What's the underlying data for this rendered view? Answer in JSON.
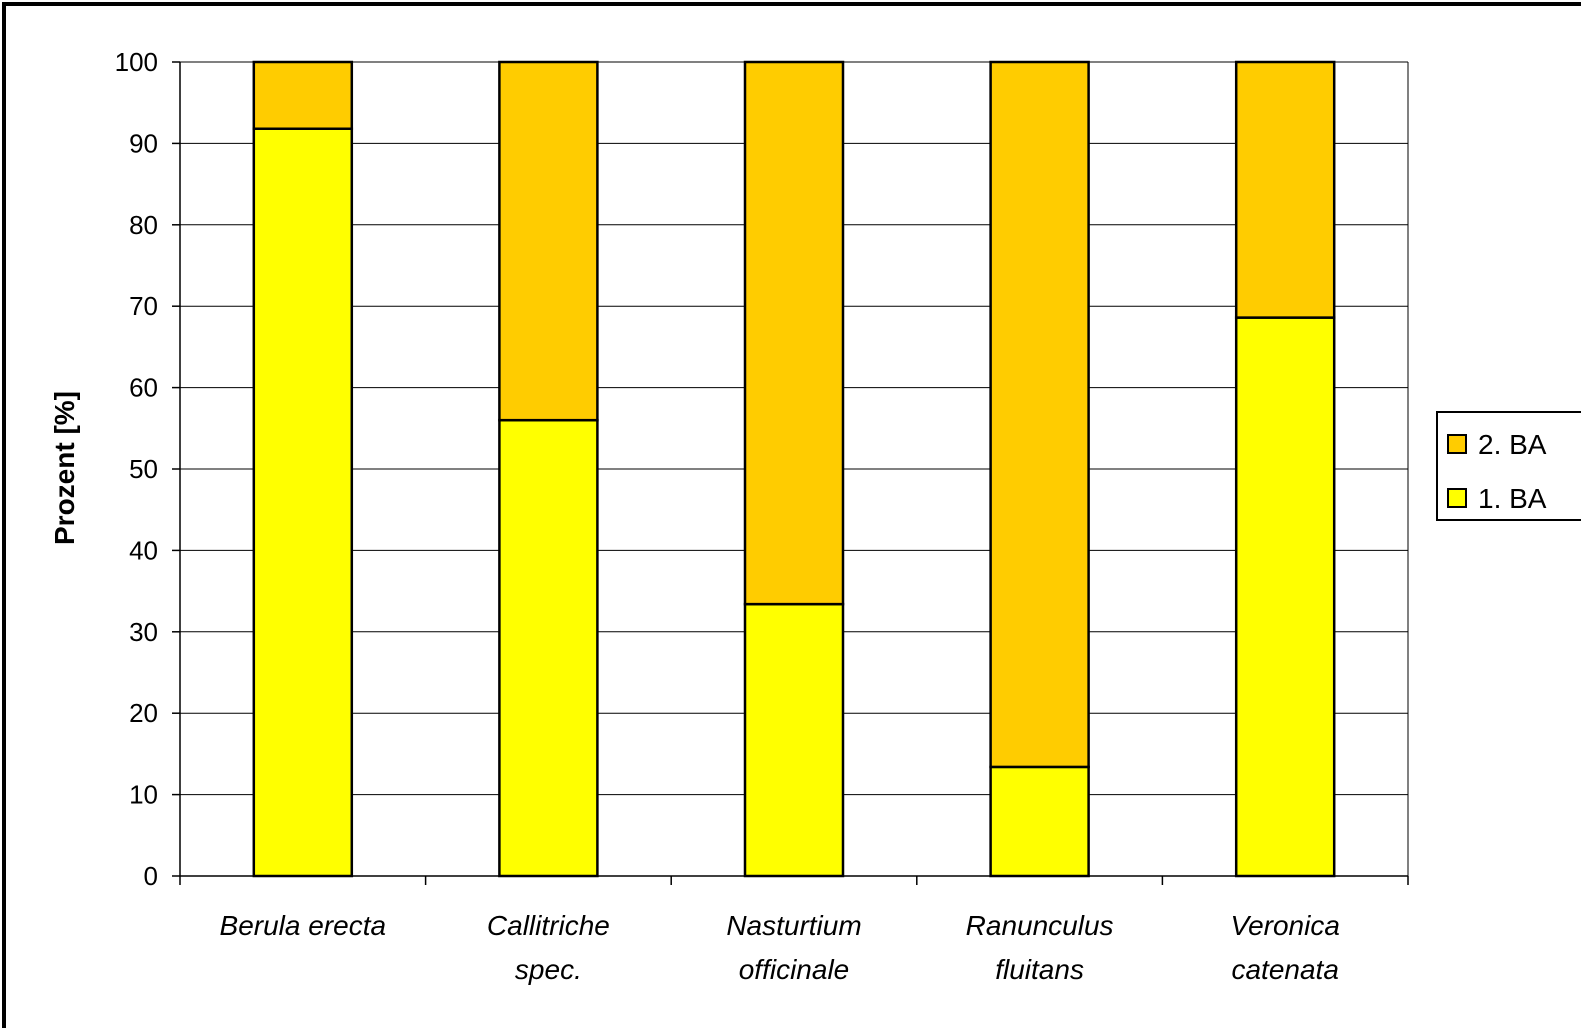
{
  "chart_data": {
    "type": "bar",
    "stacked": true,
    "categories": [
      [
        "Berula erecta"
      ],
      [
        "Callitriche",
        "spec."
      ],
      [
        "Nasturtium",
        "officinale"
      ],
      [
        "Ranunculus",
        "fluitans"
      ],
      [
        "Veronica",
        "catenata"
      ]
    ],
    "series": [
      {
        "name": "1. BA",
        "color": "#FFFF00",
        "values": [
          91.8,
          56.0,
          33.4,
          13.4,
          68.6
        ]
      },
      {
        "name": "2. BA",
        "color": "#FFCC00",
        "values": [
          8.2,
          44.0,
          66.6,
          86.6,
          31.4
        ]
      }
    ],
    "ylabel": "Prozent [%]",
    "xlabel": "",
    "ylim": [
      0,
      100
    ],
    "yticks": [
      0,
      10,
      20,
      30,
      40,
      50,
      60,
      70,
      80,
      90,
      100
    ],
    "grid": true,
    "legend": {
      "placement": "right",
      "order": [
        "2. BA",
        "1. BA"
      ]
    }
  }
}
